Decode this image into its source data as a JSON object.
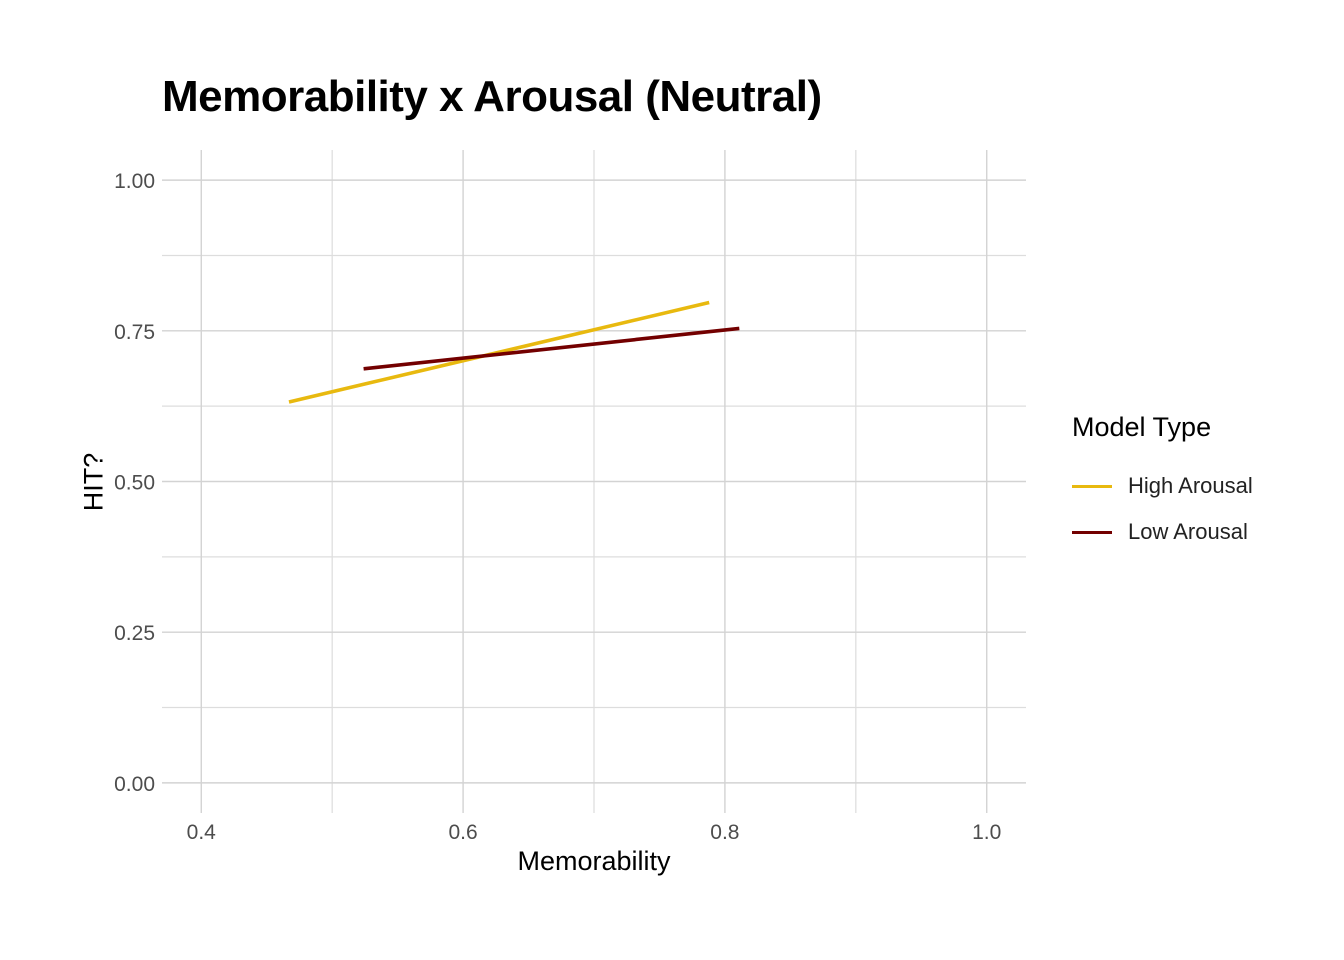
{
  "chart_data": {
    "type": "line",
    "title": "Memorability x Arousal (Neutral)",
    "xlabel": "Memorability",
    "ylabel": "HIT?",
    "xlim": [
      0.37,
      1.03
    ],
    "ylim": [
      -0.05,
      1.05
    ],
    "x_ticks": [
      "0.4",
      "0.6",
      "0.8",
      "1.0"
    ],
    "x_tick_values": [
      0.4,
      0.6,
      0.8,
      1.0
    ],
    "x_minor_grid": [
      0.5,
      0.7,
      0.9
    ],
    "y_ticks": [
      "0.00",
      "0.25",
      "0.50",
      "0.75",
      "1.00"
    ],
    "y_tick_values": [
      0,
      0.25,
      0.5,
      0.75,
      1.0
    ],
    "y_minor_grid": [
      0.125,
      0.375,
      0.625,
      0.875
    ],
    "grid": true,
    "legend": {
      "title": "Model Type",
      "position": "right"
    },
    "series": [
      {
        "name": "High Arousal",
        "color": "#E8B90F",
        "x": [
          0.467,
          0.788
        ],
        "y": [
          0.632,
          0.797
        ]
      },
      {
        "name": "Low Arousal",
        "color": "#730000",
        "x": [
          0.524,
          0.811
        ],
        "y": [
          0.687,
          0.754
        ]
      }
    ]
  }
}
